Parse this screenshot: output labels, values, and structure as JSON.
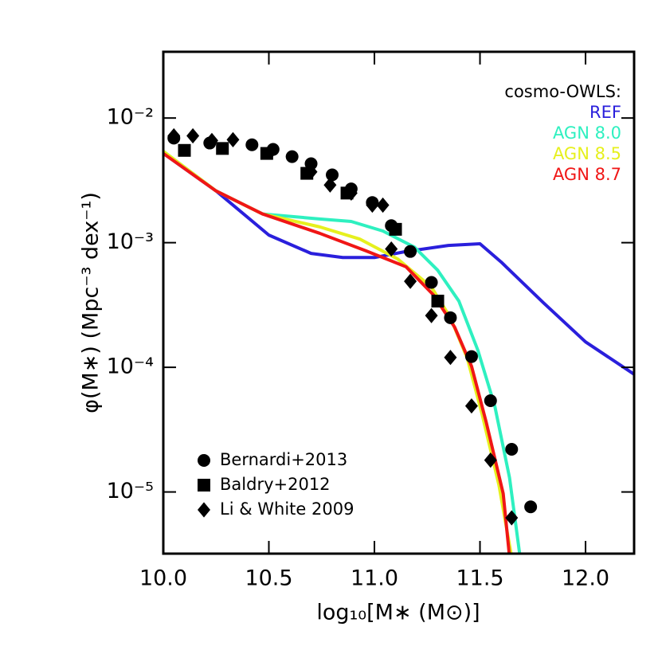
{
  "chart_data": {
    "type": "line",
    "xlabel": "log₁₀[M∗ (M⊙)]",
    "ylabel": "φ(M∗)  (Mpc⁻³ dex⁻¹)",
    "xlim": [
      10.0,
      12.23
    ],
    "ylim": [
      3.2e-06,
      0.034
    ],
    "log_y": true,
    "xticks": [
      {
        "value": 10.0,
        "label": "10.0"
      },
      10.5,
      {
        "value": 11.0,
        "label": "11.0"
      },
      11.5,
      {
        "value": 12.0,
        "label": "12.0"
      }
    ],
    "yticks": [
      {
        "value": 1e-05,
        "label": "10⁻⁵"
      },
      {
        "value": 0.0001,
        "label": "10⁻⁴"
      },
      {
        "value": 0.001,
        "label": "10⁻³"
      },
      {
        "value": 0.01,
        "label": "10⁻²"
      }
    ],
    "legend_title": "cosmo-OWLS:",
    "series": [
      {
        "name": "REF",
        "color": "#2a1fdc",
        "x": [
          10.0,
          10.25,
          10.5,
          10.7,
          10.85,
          11.0,
          11.15,
          11.35,
          11.5,
          11.6,
          11.8,
          12.0,
          12.23
        ],
        "values": [
          0.0052,
          0.0026,
          0.00115,
          0.00082,
          0.00076,
          0.00076,
          0.00085,
          0.00095,
          0.00098,
          0.0007,
          0.00033,
          0.00016,
          8.8e-05
        ]
      },
      {
        "name": "AGN 8.0",
        "color": "#2ef0c0",
        "x": [
          10.0,
          10.25,
          10.47,
          10.74,
          10.89,
          11.04,
          11.19,
          11.3,
          11.4,
          11.49,
          11.57,
          11.64,
          11.69
        ],
        "values": [
          0.0054,
          0.0026,
          0.0017,
          0.00155,
          0.00148,
          0.00124,
          0.00092,
          0.0006,
          0.00034,
          0.000137,
          4.9e-05,
          1.3e-05,
          3e-06
        ]
      },
      {
        "name": "AGN 8.5",
        "color": "#e6f01e",
        "x": [
          10.0,
          10.25,
          10.47,
          10.74,
          10.93,
          11.11,
          11.27,
          11.36,
          11.44,
          11.51,
          11.59,
          11.65
        ],
        "values": [
          0.0054,
          0.0026,
          0.0017,
          0.00134,
          0.00107,
          0.00074,
          0.00044,
          0.00025,
          0.000118,
          4.2e-05,
          1.13e-05,
          3e-06
        ]
      },
      {
        "name": "AGN 8.7",
        "color": "#f01616",
        "x": [
          10.0,
          10.25,
          10.47,
          10.74,
          10.96,
          11.15,
          11.28,
          11.38,
          11.46,
          11.53,
          11.61,
          11.64
        ],
        "values": [
          0.0052,
          0.0026,
          0.0017,
          0.00119,
          0.00086,
          0.00064,
          0.00038,
          0.00021,
          0.000102,
          3.6e-05,
          9.7e-06,
          3e-06
        ]
      },
      {
        "name": "Bernardi+2013",
        "color": "#000000",
        "marker": "circle",
        "x": [
          10.05,
          10.22,
          10.42,
          10.52,
          10.61,
          10.7,
          10.8,
          10.89,
          10.99,
          11.08,
          11.17,
          11.27,
          11.36,
          11.46,
          11.55,
          11.65,
          11.74
        ],
        "values": [
          0.0069,
          0.0063,
          0.0061,
          0.0056,
          0.0049,
          0.0043,
          0.0035,
          0.0027,
          0.0021,
          0.00137,
          0.00085,
          0.00048,
          0.00025,
          0.000122,
          5.4e-05,
          2.2e-05,
          7.6e-06
        ]
      },
      {
        "name": "Baldry+2012",
        "color": "#000000",
        "marker": "square",
        "x": [
          10.1,
          10.28,
          10.49,
          10.68,
          10.87,
          11.1,
          11.3
        ],
        "values": [
          0.0055,
          0.0057,
          0.0052,
          0.0036,
          0.0025,
          0.00128,
          0.00034
        ]
      },
      {
        "name": "Li & White 2009",
        "color": "#000000",
        "marker": "diamond",
        "x": [
          10.05,
          10.14,
          10.23,
          10.33,
          10.51,
          10.7,
          10.79,
          10.89,
          10.99,
          11.04,
          11.08,
          11.17,
          11.27,
          11.36,
          11.46,
          11.55,
          11.65
        ],
        "values": [
          0.0072,
          0.0072,
          0.0066,
          0.0067,
          0.0054,
          0.0037,
          0.0029,
          0.0025,
          0.002,
          0.002,
          0.00089,
          0.00049,
          0.00026,
          0.00012,
          4.9e-05,
          1.8e-05,
          6.2e-06
        ]
      }
    ]
  }
}
